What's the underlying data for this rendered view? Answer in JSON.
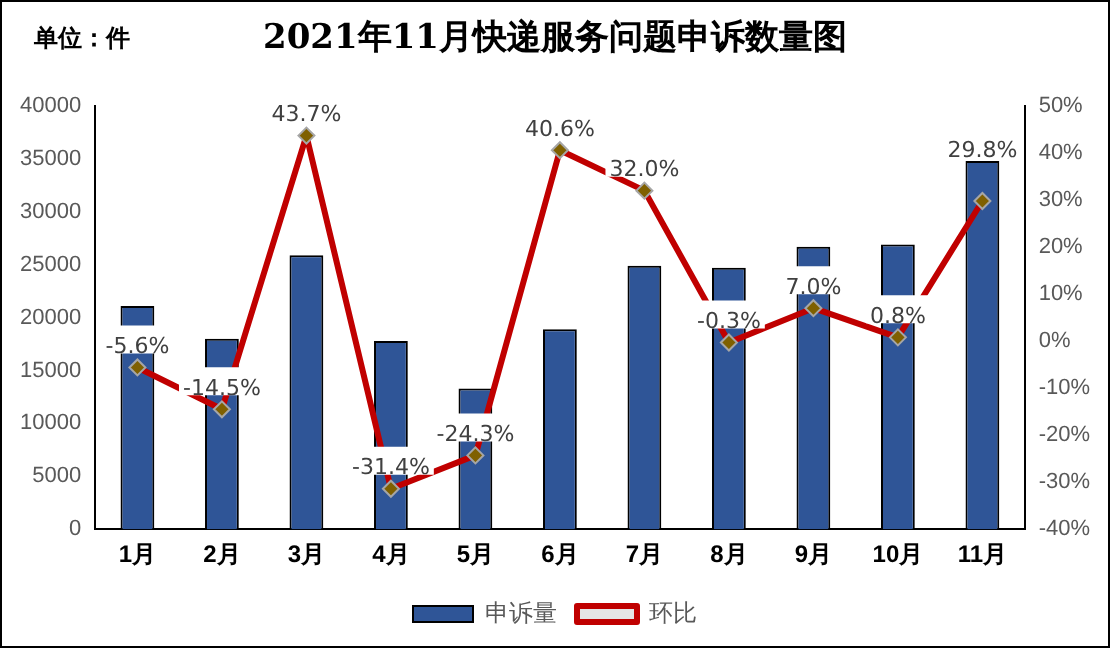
{
  "chart_data": {
    "type": "bar",
    "title": "2021年11月快递服务问题申诉数量图",
    "annotations": [
      "单位：件"
    ],
    "categories": [
      "1月",
      "2月",
      "3月",
      "4月",
      "5月",
      "6月",
      "7月",
      "8月",
      "9月",
      "10月",
      "11月"
    ],
    "series": [
      {
        "name": "申诉量",
        "color": "#2f5597",
        "values": [
          21100,
          18000,
          25900,
          17800,
          13300,
          18900,
          24900,
          24700,
          26700,
          26900,
          34800
        ]
      },
      {
        "name": "环比",
        "type": "line",
        "axis": "y2",
        "color": "#c00000",
        "marker": "diamond",
        "values": [
          -5.6,
          -14.5,
          43.7,
          -31.4,
          -24.3,
          40.6,
          32.0,
          -0.3,
          7.0,
          0.8,
          29.8
        ],
        "value_labels": [
          "-5.6%",
          "-14.5%",
          "43.7%",
          "-31.4%",
          "-24.3%",
          "40.6%",
          "32.0%",
          "-0.3%",
          "7.0%",
          "0.8%",
          "29.8%"
        ]
      }
    ],
    "ylim": [
      0,
      40000
    ],
    "yticks": [
      0,
      5000,
      10000,
      15000,
      20000,
      25000,
      30000,
      35000,
      40000
    ],
    "y2lim": [
      -40,
      50
    ],
    "y2ticks": [
      {
        "value": -40,
        "label": "-40%"
      },
      {
        "value": -30,
        "label": "-30%"
      },
      {
        "value": -20,
        "label": "-20%"
      },
      {
        "value": -10,
        "label": "-10%"
      },
      {
        "value": 0,
        "label": "0%"
      },
      {
        "value": 10,
        "label": "10%"
      },
      {
        "value": 20,
        "label": "20%"
      },
      {
        "value": 30,
        "label": "30%"
      },
      {
        "value": 40,
        "label": "40%"
      },
      {
        "value": 50,
        "label": "50%"
      }
    ],
    "grid": false,
    "legend": "bottom"
  }
}
